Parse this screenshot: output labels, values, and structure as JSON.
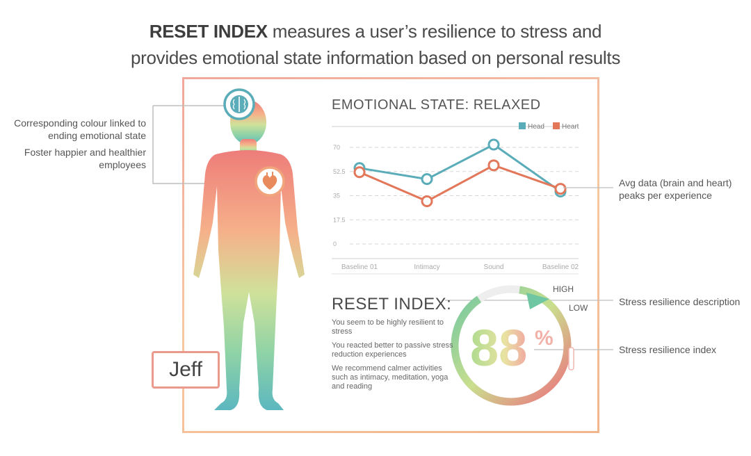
{
  "headline": {
    "brand": "RESET INDEX",
    "line1_rest": " measures a user’s resilience to stress and",
    "line2": "provides emotional state information based on personal results"
  },
  "callouts": {
    "colour": "Corresponding colour linked to ending emotional state",
    "foster": "Foster happier and healthier employees",
    "avg": "Avg data (brain and heart) peaks per experience",
    "description": "Stress resilience description",
    "index": "Stress resilience index"
  },
  "user_name": "Jeff",
  "chart_data": {
    "type": "line",
    "title": "EMOTIONAL STATE: RELAXED",
    "categories": [
      "Baseline 01",
      "Intimacy",
      "Sound",
      "Baseline 02"
    ],
    "yticks": [
      "70",
      "52.5",
      "35",
      "17.5",
      "0"
    ],
    "ylim": [
      0,
      70
    ],
    "grid": true,
    "legend_position": "top-right",
    "series": [
      {
        "name": "Head",
        "color": "#5aacb8",
        "values": [
          55,
          47,
          72,
          38
        ]
      },
      {
        "name": "Heart",
        "color": "#e2775a",
        "values": [
          52,
          31,
          57,
          40
        ]
      }
    ]
  },
  "reset_index": {
    "title": "RESET INDEX:",
    "lines": [
      "You seem to be highly resilient to stress",
      "You reacted better to passive stress reduction experiences",
      "We recommend calmer activities such as intimacy, meditation, yoga and reading"
    ],
    "value": "88",
    "unit": "%",
    "score_fraction": 0.88,
    "high_label": "HIGH",
    "low_label": "LOW"
  },
  "icons": {
    "brain": "brain-icon",
    "heart": "heart-icon"
  },
  "colors": {
    "teal": "#5aacb8",
    "coral": "#e2775a",
    "frame": "#f0a89a"
  }
}
